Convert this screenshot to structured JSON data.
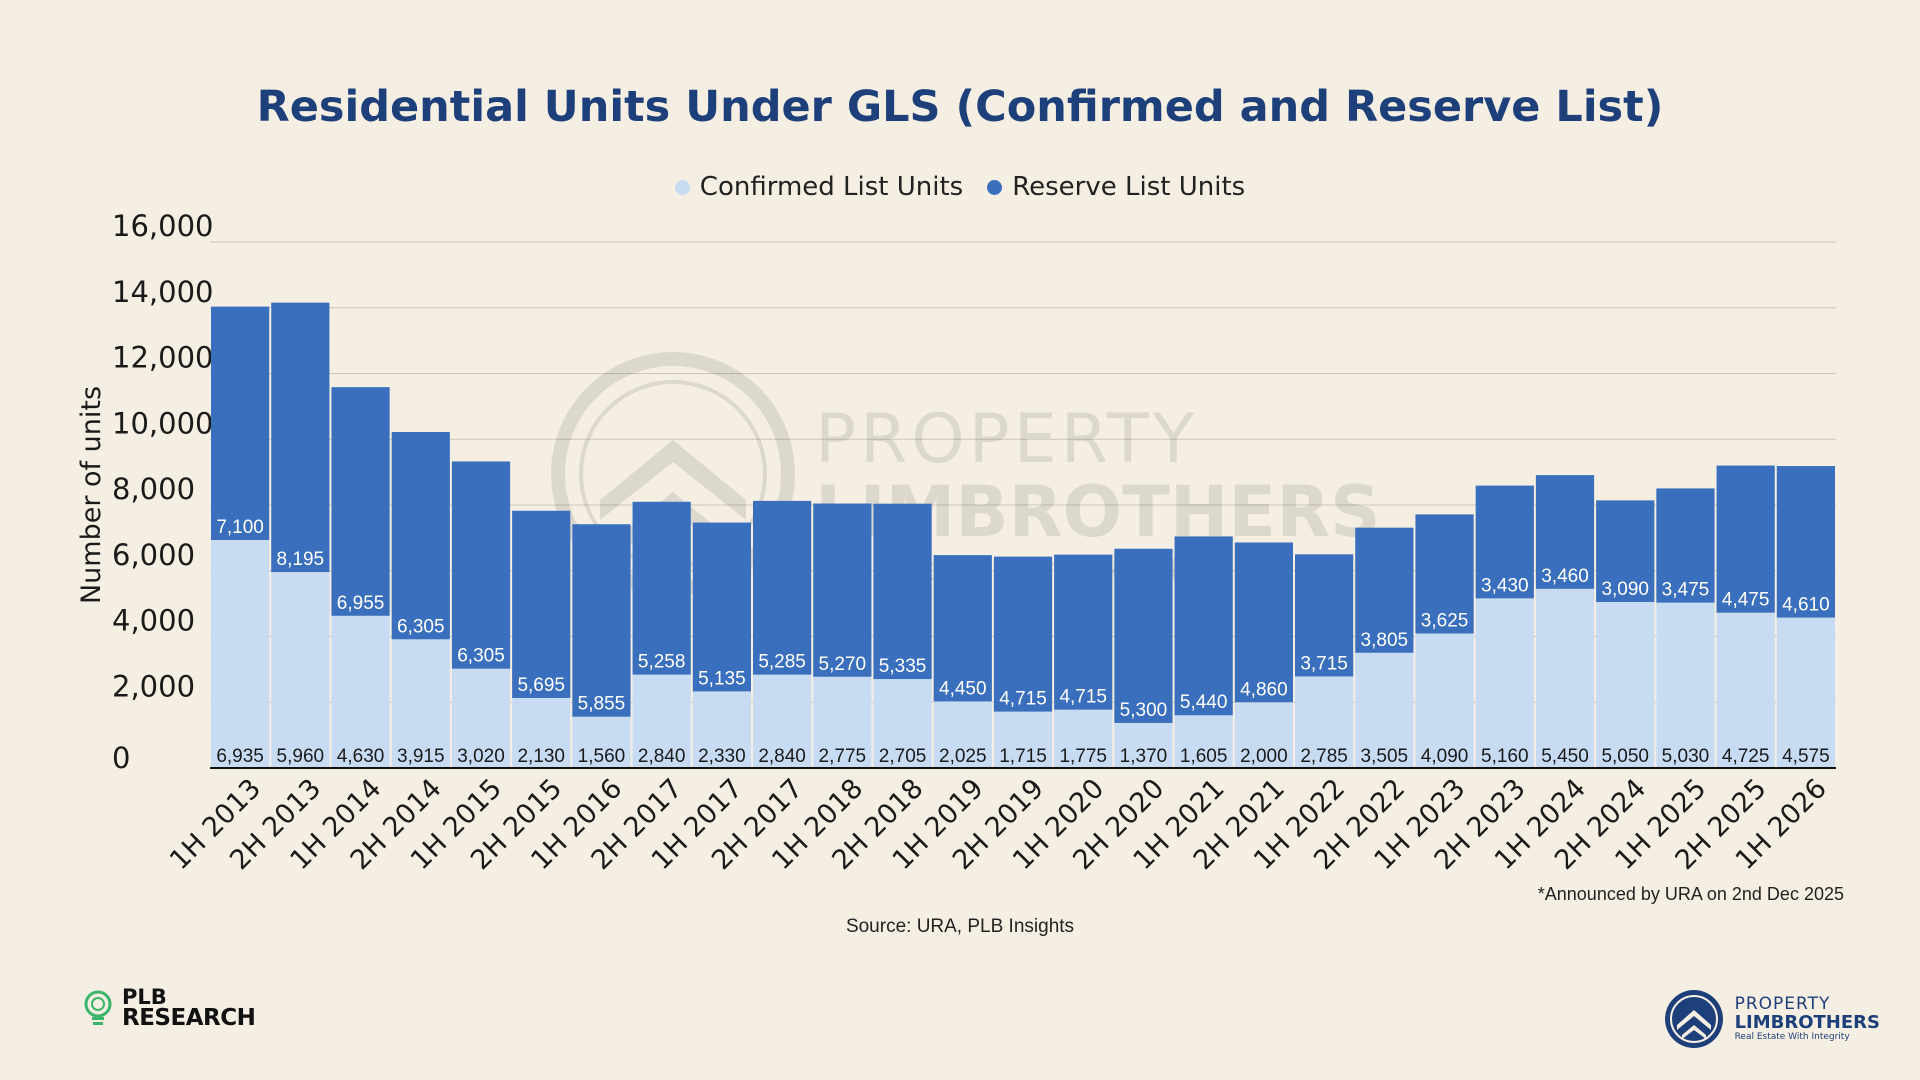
{
  "title": "Residential Units Under GLS (Confirmed and Reserve List)",
  "legend": {
    "confirmed": "Confirmed List Units",
    "reserve": "Reserve List Units"
  },
  "colors": {
    "confirmed": "#c7dbf3",
    "reserve": "#3a6fbd",
    "title": "#1d3f7a",
    "background": "#f5efe3"
  },
  "watermark": {
    "line1": "PROPERTY",
    "line2": "LIMBROTHERS",
    "line3": "Real Estate With Integrity"
  },
  "chart_data": {
    "type": "bar",
    "stacked": true,
    "title": "Residential Units Under GLS (Confirmed and Reserve List)",
    "xlabel": "",
    "ylabel": "Number of units",
    "ylim": [
      0,
      16000
    ],
    "yticks": [
      "0",
      "2,000",
      "4,000",
      "6,000",
      "8,000",
      "10,000",
      "12,000",
      "14,000",
      "16,000"
    ],
    "grid": true,
    "legend_position": "top-center",
    "categories": [
      "1H 2013",
      "2H 2013",
      "1H 2014",
      "2H 2014",
      "1H 2015",
      "2H 2015",
      "1H 2016",
      "2H 2017",
      "1H 2017",
      "2H 2017",
      "1H 2018",
      "2H 2018",
      "1H 2019",
      "2H 2019",
      "1H 2020",
      "2H 2020",
      "1H 2021",
      "2H 2021",
      "1H 2022",
      "2H 2022",
      "1H 2023",
      "2H 2023",
      "1H 2024",
      "2H 2024",
      "1H 2025",
      "2H 2025",
      "1H 2026"
    ],
    "series": [
      {
        "name": "Confirmed List Units",
        "values": [
          6935,
          5960,
          4630,
          3915,
          3020,
          2130,
          1560,
          2840,
          2330,
          2840,
          2775,
          2705,
          2025,
          1715,
          1775,
          1370,
          1605,
          2000,
          2785,
          3505,
          4090,
          5160,
          5450,
          5050,
          5030,
          4725,
          4575
        ],
        "labels": [
          "6,935",
          "5,960",
          "4,630",
          "3,915",
          "3,020",
          "2,130",
          "1,560",
          "2,840",
          "2,330",
          "2,840",
          "2,775",
          "2,705",
          "2,025",
          "1,715",
          "1,775",
          "1,370",
          "1,605",
          "2,000",
          "2,785",
          "3,505",
          "4,090",
          "5,160",
          "5,450",
          "5,050",
          "5,030",
          "4,725",
          "4,575"
        ]
      },
      {
        "name": "Reserve List Units",
        "values": [
          7100,
          8195,
          6955,
          6305,
          6305,
          5695,
          5855,
          5258,
          5135,
          5285,
          5270,
          5335,
          4450,
          4715,
          4715,
          5300,
          5440,
          4860,
          3715,
          3805,
          3625,
          3430,
          3460,
          3090,
          3475,
          4475,
          4610
        ],
        "labels": [
          "7,100",
          "8,195",
          "6,955",
          "6,305",
          "6,305",
          "5,695",
          "5,855",
          "5,258",
          "5,135",
          "5,285",
          "5,270",
          "5,335",
          "4,450",
          "4,715",
          "4,715",
          "5,300",
          "5,440",
          "4,860",
          "3,715",
          "3,805",
          "3,625",
          "3,430",
          "3,460",
          "3,090",
          "3,475",
          "4,475",
          "4,610"
        ]
      }
    ]
  },
  "footnote": "*Announced by URA on 2nd Dec 2025",
  "source": "Source: URA, PLB Insights",
  "logo_left": {
    "line1": "PLB",
    "line2": "RESEARCH"
  },
  "logo_right": {
    "line1": "PROPERTY",
    "line2": "LIMBROTHERS",
    "line3": "Real Estate With Integrity"
  }
}
